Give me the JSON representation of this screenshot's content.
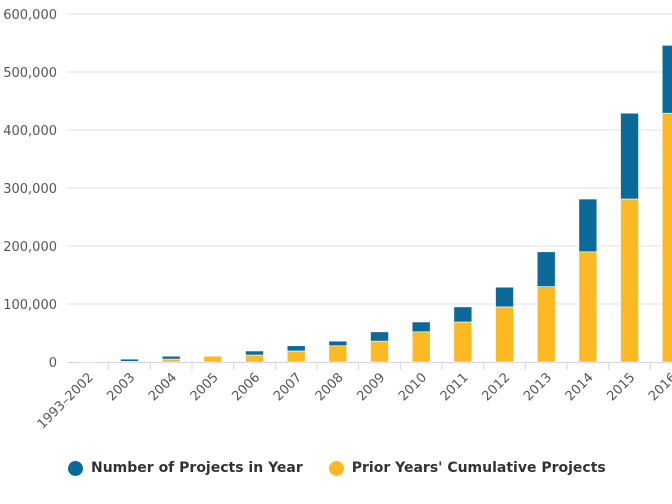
{
  "chart_data": {
    "type": "bar",
    "stacked": true,
    "categories": [
      "1993–2002",
      "2003",
      "2004",
      "2005",
      "2006",
      "2007",
      "2008",
      "2009",
      "2010",
      "2011",
      "2012",
      "2013",
      "2014",
      "2015",
      "2016"
    ],
    "series": [
      {
        "name": "Number of Projects in Year",
        "color": "#0b6a98",
        "values": [
          1000,
          4000,
          5000,
          1000,
          7000,
          9000,
          8000,
          16000,
          17000,
          26000,
          34000,
          60000,
          91000,
          148000,
          117000
        ]
      },
      {
        "name": "Prior Years' Cumulative Projects",
        "color": "#fdb924",
        "values": [
          0,
          1000,
          5000,
          10000,
          12000,
          19000,
          28000,
          36000,
          52000,
          69000,
          95000,
          130000,
          190000,
          281000,
          429000
        ]
      }
    ],
    "yticks": [
      "0",
      "100,000",
      "200,000",
      "300,000",
      "400,000",
      "500,000",
      "600,000"
    ],
    "ylim": [
      0,
      600000
    ],
    "grid": true,
    "legend": "bottom"
  }
}
